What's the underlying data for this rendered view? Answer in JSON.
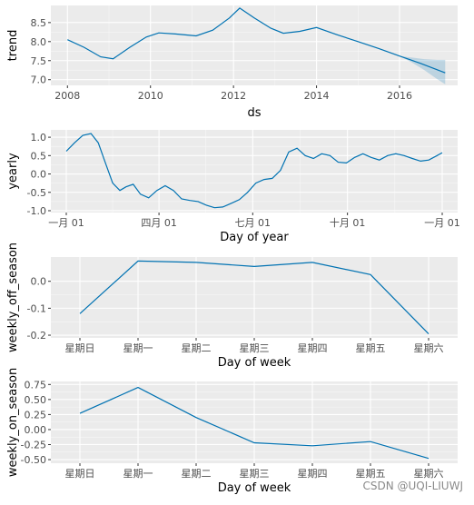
{
  "watermark": "CSDN @UQI-LIUWJ",
  "chart_data": [
    {
      "type": "line",
      "name": "trend",
      "xlabel": "ds",
      "ylabel": "trend",
      "x_axis": "numeric",
      "xlim": [
        2007.6,
        2017.4
      ],
      "ylim": [
        6.85,
        8.95
      ],
      "xticks": [
        2008,
        2010,
        2012,
        2014,
        2016
      ],
      "xtick_labels": [
        "2008",
        "2010",
        "2012",
        "2014",
        "2016"
      ],
      "yticks": [
        7.0,
        7.5,
        8.0,
        8.5
      ],
      "ytick_labels": [
        "7.0",
        "7.5",
        "8.0",
        "8.5"
      ],
      "grid": true,
      "x": [
        2008.0,
        2008.4,
        2008.8,
        2009.1,
        2009.5,
        2009.9,
        2010.2,
        2010.6,
        2011.1,
        2011.5,
        2011.9,
        2012.15,
        2012.5,
        2012.9,
        2013.2,
        2013.6,
        2014.0,
        2014.5,
        2015.0,
        2015.5,
        2016.0,
        2016.5,
        2017.1
      ],
      "y": [
        8.05,
        7.85,
        7.6,
        7.55,
        7.85,
        8.12,
        8.23,
        8.2,
        8.15,
        8.3,
        8.62,
        8.88,
        8.62,
        8.35,
        8.22,
        8.27,
        8.37,
        8.18,
        8.0,
        7.82,
        7.62,
        7.43,
        7.18
      ],
      "band": {
        "x": [
          2016.0,
          2016.3,
          2016.6,
          2016.9,
          2017.1
        ],
        "upper": [
          7.62,
          7.58,
          7.54,
          7.52,
          7.52
        ],
        "lower": [
          7.62,
          7.45,
          7.25,
          7.02,
          6.88
        ]
      }
    },
    {
      "type": "line",
      "name": "yearly",
      "xlabel": "Day of year",
      "ylabel": "yearly",
      "x_axis": "day_of_year",
      "xlim": [
        -15,
        380
      ],
      "ylim": [
        -1.05,
        1.2
      ],
      "xticks": [
        0,
        90,
        181,
        273,
        365
      ],
      "xtick_labels": [
        "一月 01",
        "四月 01",
        "七月 01",
        "十月 01",
        "一月 01"
      ],
      "yticks": [
        -1.0,
        -0.5,
        0.0,
        0.5,
        1.0
      ],
      "ytick_labels": [
        "-1.0",
        "-0.5",
        "0.0",
        "0.5",
        "1.0"
      ],
      "grid": true,
      "x": [
        0,
        8,
        16,
        24,
        31,
        38,
        45,
        52,
        58,
        65,
        72,
        80,
        88,
        96,
        104,
        112,
        120,
        128,
        136,
        144,
        152,
        160,
        168,
        176,
        184,
        192,
        200,
        208,
        216,
        224,
        232,
        240,
        248,
        256,
        264,
        272,
        280,
        288,
        296,
        304,
        312,
        320,
        328,
        336,
        344,
        352,
        360,
        365
      ],
      "y": [
        0.62,
        0.85,
        1.05,
        1.1,
        0.85,
        0.3,
        -0.25,
        -0.45,
        -0.35,
        -0.28,
        -0.55,
        -0.65,
        -0.45,
        -0.32,
        -0.45,
        -0.68,
        -0.72,
        -0.75,
        -0.85,
        -0.92,
        -0.9,
        -0.8,
        -0.7,
        -0.5,
        -0.25,
        -0.15,
        -0.12,
        0.1,
        0.6,
        0.7,
        0.5,
        0.42,
        0.55,
        0.5,
        0.32,
        0.3,
        0.45,
        0.55,
        0.45,
        0.38,
        0.5,
        0.55,
        0.5,
        0.42,
        0.35,
        0.38,
        0.5,
        0.58
      ]
    },
    {
      "type": "line",
      "name": "weekly_off_season",
      "xlabel": "Day of week",
      "ylabel": "weekly_off_season",
      "x_axis": "category",
      "categories": [
        "星期日",
        "星期一",
        "星期二",
        "星期三",
        "星期四",
        "星期五",
        "星期六"
      ],
      "ylim": [
        -0.21,
        0.09
      ],
      "yticks": [
        -0.2,
        -0.1,
        0.0
      ],
      "ytick_labels": [
        "-0.2",
        "-0.1",
        "0.0"
      ],
      "grid": true,
      "values": [
        -0.12,
        0.075,
        0.07,
        0.055,
        0.07,
        0.025,
        -0.195
      ]
    },
    {
      "type": "line",
      "name": "weekly_on_season",
      "xlabel": "Day of week",
      "ylabel": "weekly_on_season",
      "x_axis": "category",
      "categories": [
        "星期日",
        "星期一",
        "星期二",
        "星期三",
        "星期四",
        "星期五",
        "星期六"
      ],
      "ylim": [
        -0.56,
        0.8
      ],
      "yticks": [
        -0.5,
        -0.25,
        0.0,
        0.25,
        0.5,
        0.75
      ],
      "ytick_labels": [
        "-0.50",
        "-0.25",
        "0.00",
        "0.25",
        "0.50",
        "0.75"
      ],
      "grid": true,
      "values": [
        0.27,
        0.7,
        0.2,
        -0.22,
        -0.27,
        -0.2,
        -0.48
      ]
    }
  ]
}
